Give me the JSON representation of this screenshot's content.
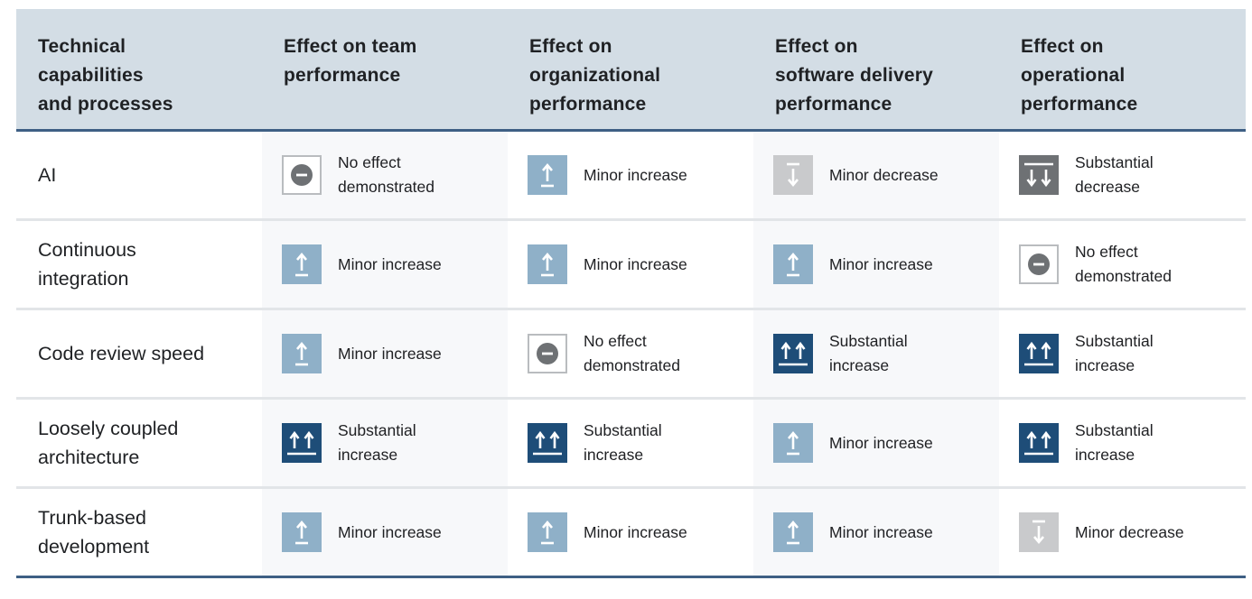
{
  "headers": [
    "Technical capabilities and processes",
    "Effect on team performance",
    "Effect on organizational performance",
    "Effect on software delivery performance",
    "Effect on operational performance"
  ],
  "rows": [
    {
      "label": "AI",
      "effects": [
        {
          "kind": "no-effect",
          "icon": "no-effect-icon",
          "text": "No effect demonstrated"
        },
        {
          "kind": "minor-inc",
          "icon": "minor-increase-icon",
          "text": "Minor increase"
        },
        {
          "kind": "minor-dec",
          "icon": "minor-decrease-icon",
          "text": "Minor decrease"
        },
        {
          "kind": "subst-dec",
          "icon": "substantial-decrease-icon",
          "text": "Substantial decrease"
        }
      ]
    },
    {
      "label": "Continuous integration",
      "effects": [
        {
          "kind": "minor-inc",
          "icon": "minor-increase-icon",
          "text": "Minor increase"
        },
        {
          "kind": "minor-inc",
          "icon": "minor-increase-icon",
          "text": "Minor increase"
        },
        {
          "kind": "minor-inc",
          "icon": "minor-increase-icon",
          "text": "Minor increase"
        },
        {
          "kind": "no-effect",
          "icon": "no-effect-icon",
          "text": "No effect demonstrated"
        }
      ]
    },
    {
      "label": "Code review speed",
      "effects": [
        {
          "kind": "minor-inc",
          "icon": "minor-increase-icon",
          "text": "Minor increase"
        },
        {
          "kind": "no-effect",
          "icon": "no-effect-icon",
          "text": "No effect demonstrated"
        },
        {
          "kind": "subst-inc",
          "icon": "substantial-increase-icon",
          "text": "Substantial increase"
        },
        {
          "kind": "subst-inc",
          "icon": "substantial-increase-icon",
          "text": "Substantial increase"
        }
      ]
    },
    {
      "label": "Loosely coupled architecture",
      "effects": [
        {
          "kind": "subst-inc",
          "icon": "substantial-increase-icon",
          "text": "Substantial increase"
        },
        {
          "kind": "subst-inc",
          "icon": "substantial-increase-icon",
          "text": "Substantial increase"
        },
        {
          "kind": "minor-inc",
          "icon": "minor-increase-icon",
          "text": "Minor increase"
        },
        {
          "kind": "subst-inc",
          "icon": "substantial-increase-icon",
          "text": "Substantial increase"
        }
      ]
    },
    {
      "label": "Trunk-based development",
      "effects": [
        {
          "kind": "minor-inc",
          "icon": "minor-increase-icon",
          "text": "Minor increase"
        },
        {
          "kind": "minor-inc",
          "icon": "minor-increase-icon",
          "text": "Minor increase"
        },
        {
          "kind": "minor-inc",
          "icon": "minor-increase-icon",
          "text": "Minor increase"
        },
        {
          "kind": "minor-dec",
          "icon": "minor-decrease-icon",
          "text": "Minor decrease"
        }
      ]
    }
  ]
}
